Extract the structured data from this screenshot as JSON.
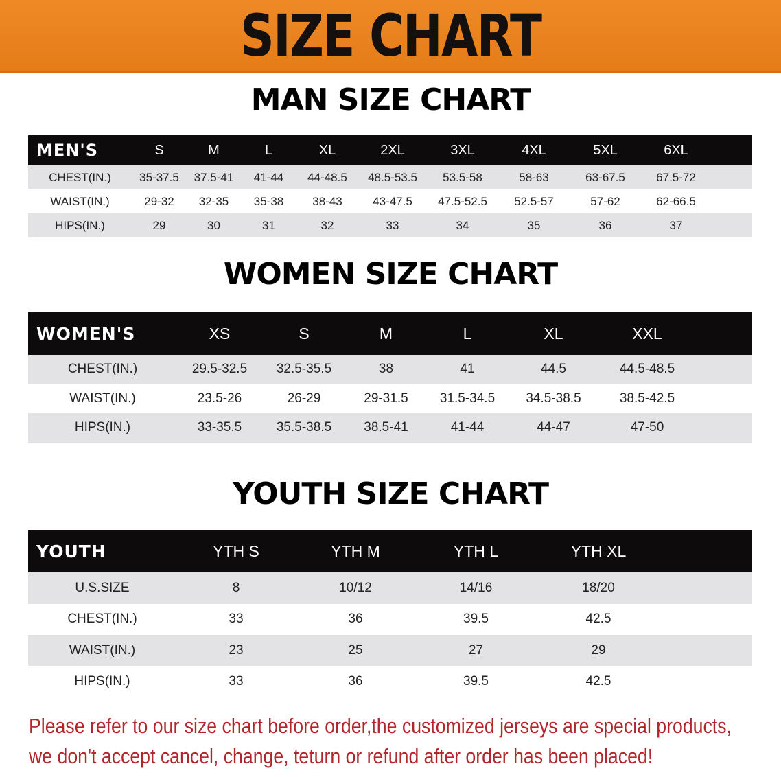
{
  "banner": {
    "title": "SIZE CHART",
    "color": "#e8821f"
  },
  "men": {
    "title": "MAN SIZE CHART",
    "header": [
      "MEN'S",
      "S",
      "M",
      "L",
      "XL",
      "2XL",
      "3XL",
      "4XL",
      "5XL",
      "6XL"
    ],
    "rows": [
      [
        "CHEST(IN.)",
        "35-37.5",
        "37.5-41",
        "41-44",
        "44-48.5",
        "48.5-53.5",
        "53.5-58",
        "58-63",
        "63-67.5",
        "67.5-72"
      ],
      [
        "WAIST(IN.)",
        "29-32",
        "32-35",
        "35-38",
        "38-43",
        "43-47.5",
        "47.5-52.5",
        "52.5-57",
        "57-62",
        "62-66.5"
      ],
      [
        "HIPS(IN.)",
        "29",
        "30",
        "31",
        "32",
        "33",
        "34",
        "35",
        "36",
        "37"
      ]
    ]
  },
  "women": {
    "title": "WOMEN SIZE CHART",
    "header": [
      "WOMEN'S",
      "XS",
      "S",
      "M",
      "L",
      "XL",
      "XXL"
    ],
    "rows": [
      [
        "CHEST(IN.)",
        "29.5-32.5",
        "32.5-35.5",
        "38",
        "41",
        "44.5",
        "44.5-48.5"
      ],
      [
        "WAIST(IN.)",
        "23.5-26",
        "26-29",
        "29-31.5",
        "31.5-34.5",
        "34.5-38.5",
        "38.5-42.5"
      ],
      [
        "HIPS(IN.)",
        "33-35.5",
        "35.5-38.5",
        "38.5-41",
        "41-44",
        "44-47",
        "47-50"
      ]
    ]
  },
  "youth": {
    "title": "YOUTH SIZE CHART",
    "header": [
      "YOUTH",
      "YTH S",
      "YTH M",
      "YTH L",
      "YTH XL"
    ],
    "rows": [
      [
        "U.S.SIZE",
        "8",
        "10/12",
        "14/16",
        "18/20"
      ],
      [
        "CHEST(IN.)",
        "33",
        "36",
        "39.5",
        "42.5"
      ],
      [
        "WAIST(IN.)",
        "23",
        "25",
        "27",
        "29"
      ],
      [
        "HIPS(IN.)",
        "33",
        "36",
        "39.5",
        "42.5"
      ]
    ]
  },
  "notice": {
    "line1": "Please refer to our size chart before order,the customized jerseys are special products,",
    "line2": "we don't accept cancel, change, teturn or refund after order has been placed!",
    "color": "#b3262b"
  }
}
